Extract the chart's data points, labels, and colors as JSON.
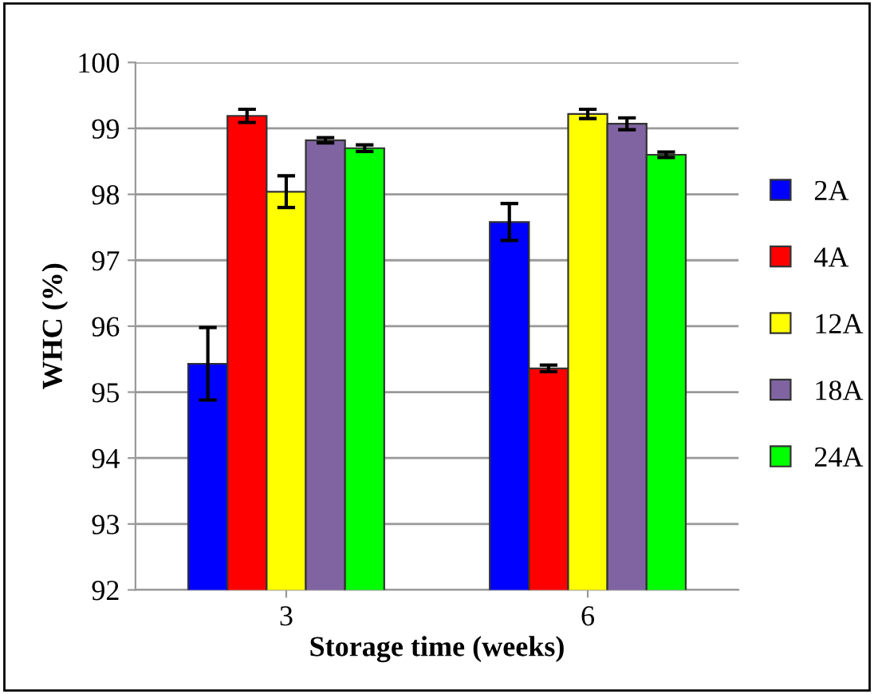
{
  "chart_data": {
    "type": "bar",
    "xlabel": "Storage time (weeks)",
    "ylabel": "WHC (%)",
    "categories": [
      "3",
      "6"
    ],
    "series": [
      {
        "name": "2A",
        "color": "#0000ff",
        "values": [
          95.43,
          97.58
        ],
        "errors": [
          0.55,
          0.28
        ]
      },
      {
        "name": "4A",
        "color": "#ff0000",
        "values": [
          99.19,
          95.36
        ],
        "errors": [
          0.1,
          0.05
        ]
      },
      {
        "name": "12A",
        "color": "#ffff00",
        "values": [
          98.04,
          99.22
        ],
        "errors": [
          0.24,
          0.07
        ]
      },
      {
        "name": "18A",
        "color": "#8064a2",
        "values": [
          98.82,
          99.07
        ],
        "errors": [
          0.04,
          0.09
        ]
      },
      {
        "name": "24A",
        "color": "#00ff00",
        "values": [
          98.7,
          98.6
        ],
        "errors": [
          0.05,
          0.04
        ]
      }
    ],
    "ylim": [
      92,
      100
    ],
    "yticks": [
      92,
      93,
      94,
      95,
      96,
      97,
      98,
      99,
      100
    ],
    "grid": "y",
    "legend": "right"
  }
}
